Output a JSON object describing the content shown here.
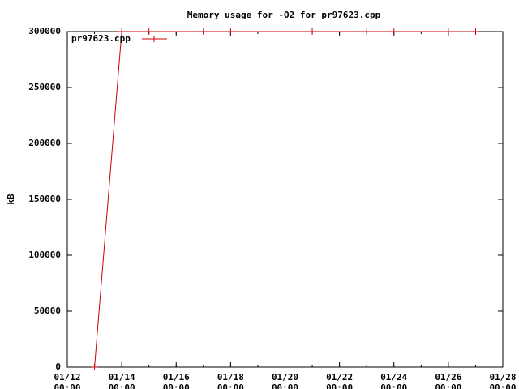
{
  "chart_data": {
    "type": "line",
    "title": "Memory usage for -O2 for pr97623.cpp",
    "y_label": "kB",
    "x": [
      "01/13 00:00",
      "01/14 00:00",
      "01/15 00:00",
      "01/17 00:00",
      "01/18 00:00",
      "01/20 00:00",
      "01/21 00:00",
      "01/23 00:00",
      "01/24 00:00",
      "01/26 00:00",
      "01/27 00:00"
    ],
    "series": [
      {
        "name": "pr97623.cpp",
        "color": "#cc0000",
        "values": [
          0,
          300000,
          300000,
          300000,
          300000,
          300000,
          300000,
          300000,
          300000,
          300000,
          300000
        ]
      }
    ],
    "xlim": [
      "01/12 00:00",
      "01/28 00:00"
    ],
    "xticks": [
      "01/12 00:00",
      "01/14 00:00",
      "01/16 00:00",
      "01/18 00:00",
      "01/20 00:00",
      "01/22 00:00",
      "01/24 00:00",
      "01/26 00:00",
      "01/28 00:00"
    ],
    "ylim": [
      0,
      300000
    ],
    "yticks": [
      0,
      50000,
      100000,
      150000,
      200000,
      250000,
      300000
    ],
    "grid": false,
    "legend": "top-left"
  }
}
